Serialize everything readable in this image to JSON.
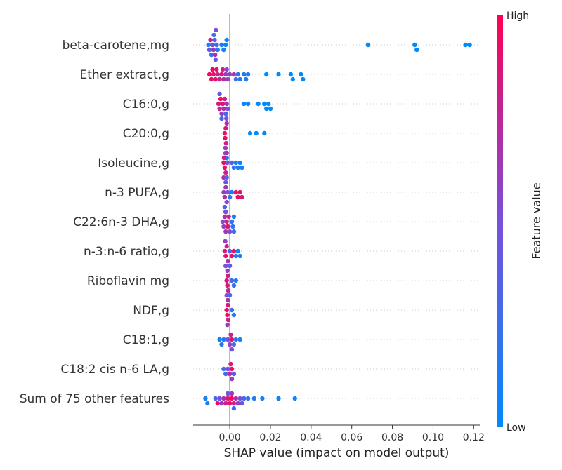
{
  "chart_data": {
    "type": "scatter",
    "subtype": "shap-beeswarm",
    "xlabel": "SHAP value (impact on model output)",
    "xlim": [
      -0.018,
      0.123
    ],
    "xticks": [
      "0.00",
      "0.02",
      "0.04",
      "0.06",
      "0.08",
      "0.10",
      "0.12"
    ],
    "xtick_values": [
      0,
      0.02,
      0.04,
      0.06,
      0.08,
      0.1,
      0.12
    ],
    "zero_line": true,
    "grid": "horizontal dotted per feature",
    "colorbar": {
      "title": "Feature value",
      "high_label": "High",
      "low_label": "Low",
      "high_color": "#ff0052",
      "low_color": "#008bfb"
    },
    "features": [
      {
        "name": "beta-carotene,mg",
        "points": [
          [
            -0.0105,
            0.1
          ],
          [
            -0.01,
            0.4
          ],
          [
            -0.0095,
            0.8
          ],
          [
            -0.009,
            0.2
          ],
          [
            -0.0085,
            0.5
          ],
          [
            -0.008,
            0.6
          ],
          [
            -0.0078,
            0.3
          ],
          [
            -0.0075,
            0.35
          ],
          [
            -0.0072,
            0.7
          ],
          [
            -0.007,
            0.45
          ],
          [
            -0.0068,
            0.5
          ],
          [
            -0.0065,
            0.25
          ],
          [
            -0.006,
            0.15
          ],
          [
            -0.004,
            0.1
          ],
          [
            -0.003,
            0.05
          ],
          [
            -0.002,
            0.05
          ],
          [
            -0.0015,
            0.05
          ],
          [
            0.068,
            0.0
          ],
          [
            0.091,
            0.0
          ],
          [
            0.092,
            0.0
          ],
          [
            0.116,
            0.0
          ],
          [
            0.118,
            0.0
          ]
        ]
      },
      {
        "name": "Ether extract,g",
        "points": [
          [
            -0.01,
            0.95
          ],
          [
            -0.009,
            0.9
          ],
          [
            -0.008,
            0.85
          ],
          [
            -0.007,
            0.9
          ],
          [
            -0.006,
            0.8
          ],
          [
            -0.005,
            0.75
          ],
          [
            -0.004,
            0.85
          ],
          [
            -0.003,
            0.7
          ],
          [
            -0.002,
            0.65
          ],
          [
            -0.001,
            0.6
          ],
          [
            0.0,
            0.55
          ],
          [
            -0.0085,
            0.95
          ],
          [
            -0.0065,
            0.9
          ],
          [
            -0.0035,
            0.8
          ],
          [
            -0.0015,
            0.55
          ],
          [
            0.002,
            0.7
          ],
          [
            0.003,
            0.3
          ],
          [
            0.004,
            0.2
          ],
          [
            0.005,
            0.15
          ],
          [
            0.007,
            0.1
          ],
          [
            0.008,
            0.1
          ],
          [
            0.009,
            0.15
          ],
          [
            0.018,
            0.0
          ],
          [
            0.024,
            0.0
          ],
          [
            0.03,
            0.0
          ],
          [
            0.031,
            0.0
          ],
          [
            0.035,
            0.0
          ],
          [
            0.036,
            0.0
          ]
        ]
      },
      {
        "name": "C16:0,g",
        "points": [
          [
            -0.0055,
            0.85
          ],
          [
            -0.005,
            0.75
          ],
          [
            -0.0045,
            0.95
          ],
          [
            -0.004,
            0.6
          ],
          [
            -0.0035,
            0.9
          ],
          [
            -0.003,
            0.7
          ],
          [
            -0.0025,
            0.8
          ],
          [
            -0.002,
            0.55
          ],
          [
            -0.0015,
            0.65
          ],
          [
            -0.001,
            0.5
          ],
          [
            -0.005,
            0.4
          ],
          [
            -0.004,
            0.3
          ],
          [
            0.007,
            0.05
          ],
          [
            0.009,
            0.05
          ],
          [
            0.014,
            0.05
          ],
          [
            0.017,
            0.0
          ],
          [
            0.018,
            0.0
          ],
          [
            0.019,
            0.0
          ],
          [
            0.02,
            0.0
          ]
        ]
      },
      {
        "name": "C20:0,g",
        "points": [
          [
            -0.0025,
            0.9
          ],
          [
            -0.0023,
            0.95
          ],
          [
            -0.002,
            0.85
          ],
          [
            -0.0018,
            0.8
          ],
          [
            -0.0015,
            0.7
          ],
          [
            -0.002,
            0.6
          ],
          [
            -0.0017,
            0.5
          ],
          [
            -0.0022,
            0.4
          ],
          [
            -0.0018,
            0.3
          ],
          [
            -0.0015,
            0.2
          ],
          [
            0.01,
            0.0
          ],
          [
            0.013,
            0.0
          ],
          [
            0.017,
            0.0
          ]
        ]
      },
      {
        "name": "Isoleucine,g",
        "points": [
          [
            -0.003,
            0.95
          ],
          [
            -0.0025,
            0.9
          ],
          [
            -0.0028,
            0.85
          ],
          [
            -0.002,
            0.8
          ],
          [
            -0.0015,
            0.75
          ],
          [
            -0.003,
            0.7
          ],
          [
            -0.0022,
            0.6
          ],
          [
            -0.0012,
            0.5
          ],
          [
            0.001,
            0.3
          ],
          [
            0.002,
            0.2
          ],
          [
            0.003,
            0.15
          ],
          [
            0.004,
            0.1
          ],
          [
            0.005,
            0.05
          ],
          [
            0.006,
            0.05
          ]
        ]
      },
      {
        "name": "n-3 PUFA,g",
        "points": [
          [
            -0.003,
            0.6
          ],
          [
            -0.0025,
            0.7
          ],
          [
            -0.002,
            0.65
          ],
          [
            -0.0015,
            0.55
          ],
          [
            -0.001,
            0.5
          ],
          [
            -0.002,
            0.4
          ],
          [
            -0.0025,
            0.35
          ],
          [
            -0.0015,
            0.3
          ],
          [
            0.0,
            0.2
          ],
          [
            0.001,
            0.15
          ],
          [
            0.003,
            0.9
          ],
          [
            0.004,
            0.95
          ],
          [
            0.005,
            0.9
          ],
          [
            0.006,
            0.85
          ],
          [
            -0.002,
            0.85
          ]
        ]
      },
      {
        "name": "C22:6n-3 DHA,g",
        "points": [
          [
            -0.0035,
            0.55
          ],
          [
            -0.003,
            0.6
          ],
          [
            -0.0025,
            0.7
          ],
          [
            -0.002,
            0.65
          ],
          [
            -0.0015,
            0.8
          ],
          [
            -0.001,
            0.9
          ],
          [
            -0.0005,
            0.75
          ],
          [
            0.0,
            0.5
          ],
          [
            0.001,
            0.2
          ],
          [
            0.0015,
            0.15
          ],
          [
            0.002,
            0.1
          ],
          [
            -0.002,
            0.45
          ],
          [
            0.002,
            0.3
          ]
        ]
      },
      {
        "name": "n-3:n-6 ratio,g",
        "points": [
          [
            -0.0025,
            0.85
          ],
          [
            -0.002,
            0.9
          ],
          [
            -0.0015,
            0.8
          ],
          [
            -0.001,
            0.7
          ],
          [
            -0.0022,
            0.6
          ],
          [
            -0.002,
            0.5
          ],
          [
            0.0,
            0.3
          ],
          [
            0.001,
            0.95
          ],
          [
            0.002,
            0.9
          ],
          [
            0.003,
            0.2
          ],
          [
            0.004,
            0.1
          ],
          [
            0.005,
            0.05
          ]
        ]
      },
      {
        "name": "Riboflavin mg",
        "points": [
          [
            -0.0015,
            0.9
          ],
          [
            -0.0012,
            0.85
          ],
          [
            -0.001,
            0.8
          ],
          [
            -0.0008,
            0.75
          ],
          [
            -0.0012,
            0.6
          ],
          [
            -0.0015,
            0.5
          ],
          [
            0.0,
            0.4
          ],
          [
            0.001,
            0.3
          ],
          [
            0.002,
            0.2
          ],
          [
            0.003,
            0.15
          ]
        ]
      },
      {
        "name": "NDF,g",
        "points": [
          [
            -0.0015,
            0.95
          ],
          [
            -0.0012,
            0.9
          ],
          [
            -0.001,
            0.85
          ],
          [
            -0.0008,
            0.8
          ],
          [
            -0.001,
            0.7
          ],
          [
            -0.0012,
            0.6
          ],
          [
            0.0,
            0.3
          ],
          [
            0.001,
            0.2
          ],
          [
            0.002,
            0.15
          ]
        ]
      },
      {
        "name": "C18:1,g",
        "points": [
          [
            -0.005,
            0.1
          ],
          [
            -0.004,
            0.15
          ],
          [
            -0.003,
            0.2
          ],
          [
            -0.001,
            0.4
          ],
          [
            0.0,
            0.6
          ],
          [
            0.0005,
            0.8
          ],
          [
            0.001,
            0.9
          ],
          [
            0.001,
            0.5
          ],
          [
            0.002,
            0.3
          ],
          [
            0.003,
            0.2
          ],
          [
            0.005,
            0.1
          ]
        ]
      },
      {
        "name": "C18:2 cis n-6 LA,g",
        "points": [
          [
            -0.003,
            0.2
          ],
          [
            -0.002,
            0.3
          ],
          [
            -0.001,
            0.5
          ],
          [
            0.0,
            0.7
          ],
          [
            0.0005,
            0.85
          ],
          [
            0.001,
            0.9
          ],
          [
            0.001,
            0.6
          ],
          [
            0.002,
            0.4
          ]
        ]
      },
      {
        "name": "Sum of 75 other features",
        "points": [
          [
            -0.012,
            0.1
          ],
          [
            -0.011,
            0.15
          ],
          [
            -0.007,
            0.3
          ],
          [
            -0.005,
            0.5
          ],
          [
            -0.004,
            0.65
          ],
          [
            -0.003,
            0.7
          ],
          [
            -0.002,
            0.8
          ],
          [
            -0.001,
            0.85
          ],
          [
            0.0,
            0.9
          ],
          [
            0.001,
            0.95
          ],
          [
            0.002,
            0.8
          ],
          [
            0.003,
            0.7
          ],
          [
            0.004,
            0.6
          ],
          [
            0.005,
            0.5
          ],
          [
            0.006,
            0.4
          ],
          [
            0.007,
            0.3
          ],
          [
            0.009,
            0.2
          ],
          [
            0.012,
            0.15
          ],
          [
            0.016,
            0.1
          ],
          [
            0.024,
            0.05
          ],
          [
            0.032,
            0.05
          ],
          [
            -0.006,
            0.9
          ],
          [
            0.001,
            0.6
          ],
          [
            -0.001,
            0.4
          ],
          [
            0.002,
            0.2
          ]
        ]
      }
    ]
  }
}
